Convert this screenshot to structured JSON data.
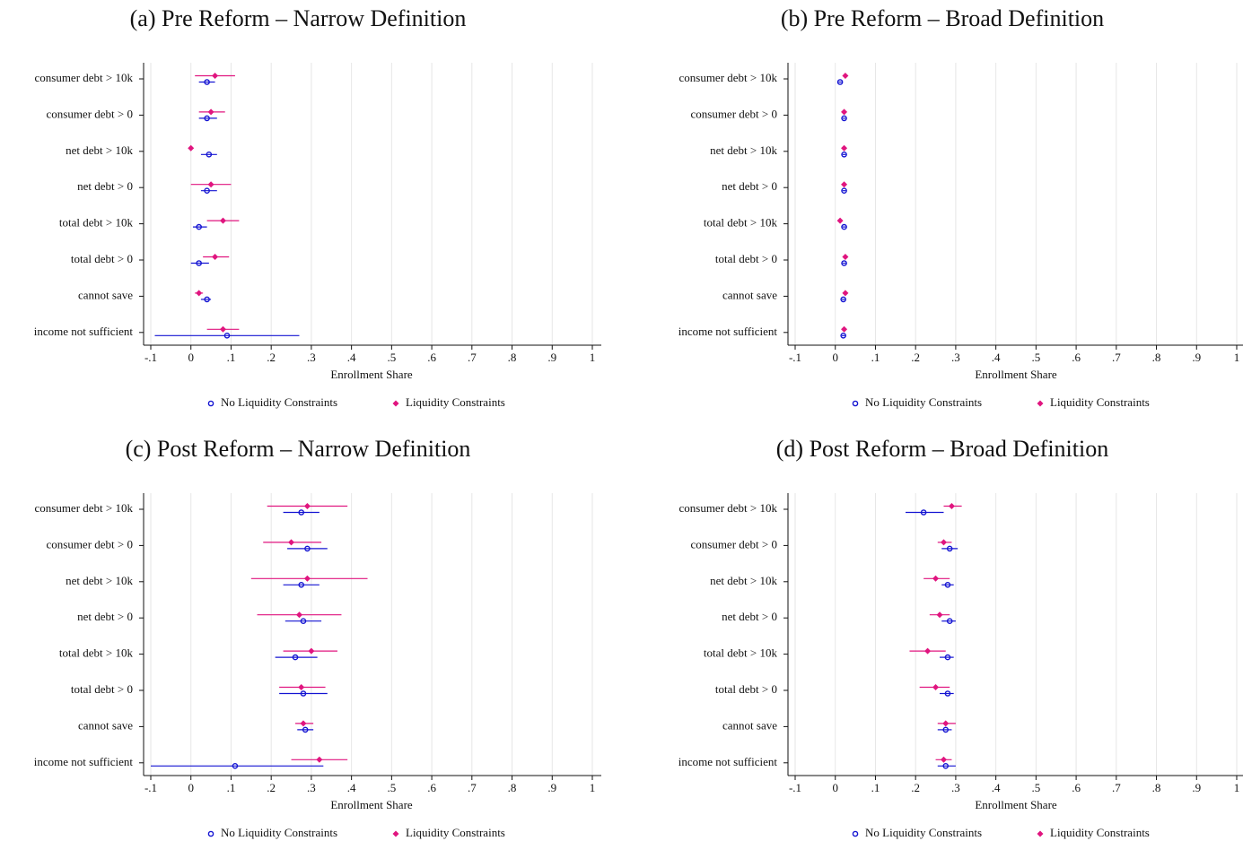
{
  "chart_data": [
    {
      "type": "dot",
      "title": "(a) Pre Reform – Narrow Definition",
      "xlabel": "Enrollment Share",
      "categories": [
        "consumer debt > 10k",
        "consumer debt > 0",
        "net debt > 10k",
        "net debt > 0",
        "total debt > 10k",
        "total debt > 0",
        "cannot save",
        "income not sufficient"
      ],
      "xlim": [
        -0.1,
        1
      ],
      "xticks": [
        {
          "value": -0.1,
          "label": "-.1"
        },
        0,
        {
          "value": 0.1,
          "label": ".1"
        },
        {
          "value": 0.2,
          "label": ".2"
        },
        {
          "value": 0.3,
          "label": ".3"
        },
        {
          "value": 0.4,
          "label": ".4"
        },
        {
          "value": 0.5,
          "label": ".5"
        },
        {
          "value": 0.6,
          "label": ".6"
        },
        {
          "value": 0.7,
          "label": ".7"
        },
        {
          "value": 0.8,
          "label": ".8"
        },
        {
          "value": 0.9,
          "label": ".9"
        },
        1
      ],
      "grid": true,
      "series": [
        {
          "name": "No Liquidity Constraints",
          "color": "#1414d2",
          "marker": "circle",
          "values": [
            0.04,
            0.04,
            0.045,
            0.04,
            0.02,
            0.02,
            0.04,
            0.09
          ],
          "lower": [
            0.02,
            0.02,
            0.025,
            0.025,
            0.005,
            0,
            0.025,
            -0.09
          ],
          "upper": [
            0.06,
            0.065,
            0.065,
            0.065,
            0.04,
            0.045,
            0.05,
            0.27
          ]
        },
        {
          "name": "Liquidity Constraints",
          "color": "#e0157f",
          "marker": "diamond",
          "values": [
            0.06,
            0.05,
            0,
            0.05,
            0.08,
            0.06,
            0.02,
            0.08
          ],
          "lower": [
            0.01,
            0.02,
            -0.002,
            0,
            0.04,
            0.03,
            0.01,
            0.04
          ],
          "upper": [
            0.11,
            0.085,
            0.002,
            0.1,
            0.12,
            0.095,
            0.03,
            0.12
          ]
        }
      ]
    },
    {
      "type": "dot",
      "title": "(b) Pre Reform – Broad Definition",
      "xlabel": "Enrollment Share",
      "categories": [
        "consumer debt > 10k",
        "consumer debt > 0",
        "net debt > 10k",
        "net debt > 0",
        "total debt > 10k",
        "total debt > 0",
        "cannot save",
        "income not sufficient"
      ],
      "xlim": [
        -0.1,
        1
      ],
      "xticks": [
        {
          "value": -0.1,
          "label": "-.1"
        },
        0,
        {
          "value": 0.1,
          "label": ".1"
        },
        {
          "value": 0.2,
          "label": ".2"
        },
        {
          "value": 0.3,
          "label": ".3"
        },
        {
          "value": 0.4,
          "label": ".4"
        },
        {
          "value": 0.5,
          "label": ".5"
        },
        {
          "value": 0.6,
          "label": ".6"
        },
        {
          "value": 0.7,
          "label": ".7"
        },
        {
          "value": 0.8,
          "label": ".8"
        },
        {
          "value": 0.9,
          "label": ".9"
        },
        1
      ],
      "grid": true,
      "series": [
        {
          "name": "No Liquidity Constraints",
          "color": "#1414d2",
          "marker": "circle",
          "values": [
            0.012,
            0.022,
            0.022,
            0.022,
            0.022,
            0.022,
            0.02,
            0.02
          ],
          "lower": [
            0.008,
            0.018,
            0.018,
            0.018,
            0.018,
            0.018,
            0.016,
            0.016
          ],
          "upper": [
            0.016,
            0.026,
            0.026,
            0.026,
            0.026,
            0.026,
            0.024,
            0.024
          ]
        },
        {
          "name": "Liquidity Constraints",
          "color": "#e0157f",
          "marker": "diamond",
          "values": [
            0.025,
            0.022,
            0.022,
            0.022,
            0.012,
            0.025,
            0.025,
            0.022
          ],
          "lower": [
            0.021,
            0.018,
            0.018,
            0.018,
            0.006,
            0.019,
            0.021,
            0.018
          ],
          "upper": [
            0.029,
            0.026,
            0.026,
            0.026,
            0.018,
            0.031,
            0.029,
            0.026
          ]
        }
      ]
    },
    {
      "type": "dot",
      "title": "(c) Post Reform – Narrow Definition",
      "xlabel": "Enrollment Share",
      "categories": [
        "consumer debt > 10k",
        "consumer debt > 0",
        "net debt > 10k",
        "net debt > 0",
        "total debt > 10k",
        "total debt > 0",
        "cannot save",
        "income not sufficient"
      ],
      "xlim": [
        -0.1,
        1
      ],
      "xticks": [
        {
          "value": -0.1,
          "label": "-.1"
        },
        0,
        {
          "value": 0.1,
          "label": ".1"
        },
        {
          "value": 0.2,
          "label": ".2"
        },
        {
          "value": 0.3,
          "label": ".3"
        },
        {
          "value": 0.4,
          "label": ".4"
        },
        {
          "value": 0.5,
          "label": ".5"
        },
        {
          "value": 0.6,
          "label": ".6"
        },
        {
          "value": 0.7,
          "label": ".7"
        },
        {
          "value": 0.8,
          "label": ".8"
        },
        {
          "value": 0.9,
          "label": ".9"
        },
        1
      ],
      "grid": true,
      "series": [
        {
          "name": "No Liquidity Constraints",
          "color": "#1414d2",
          "marker": "circle",
          "values": [
            0.275,
            0.29,
            0.275,
            0.28,
            0.26,
            0.28,
            0.285,
            0.11
          ],
          "lower": [
            0.23,
            0.24,
            0.23,
            0.235,
            0.21,
            0.22,
            0.265,
            -0.1
          ],
          "upper": [
            0.32,
            0.34,
            0.32,
            0.325,
            0.315,
            0.34,
            0.305,
            0.33
          ]
        },
        {
          "name": "Liquidity Constraints",
          "color": "#e0157f",
          "marker": "diamond",
          "values": [
            0.29,
            0.25,
            0.29,
            0.27,
            0.3,
            0.275,
            0.28,
            0.32
          ],
          "lower": [
            0.19,
            0.18,
            0.15,
            0.165,
            0.23,
            0.22,
            0.26,
            0.25
          ],
          "upper": [
            0.39,
            0.325,
            0.44,
            0.375,
            0.365,
            0.335,
            0.305,
            0.39
          ]
        }
      ]
    },
    {
      "type": "dot",
      "title": "(d) Post Reform – Broad Definition",
      "xlabel": "Enrollment Share",
      "categories": [
        "consumer debt > 10k",
        "consumer debt > 0",
        "net debt > 10k",
        "net debt > 0",
        "total debt > 10k",
        "total debt > 0",
        "cannot save",
        "income not sufficient"
      ],
      "xlim": [
        -0.1,
        1
      ],
      "xticks": [
        {
          "value": -0.1,
          "label": "-.1"
        },
        0,
        {
          "value": 0.1,
          "label": ".1"
        },
        {
          "value": 0.2,
          "label": ".2"
        },
        {
          "value": 0.3,
          "label": ".3"
        },
        {
          "value": 0.4,
          "label": ".4"
        },
        {
          "value": 0.5,
          "label": ".5"
        },
        {
          "value": 0.6,
          "label": ".6"
        },
        {
          "value": 0.7,
          "label": ".7"
        },
        {
          "value": 0.8,
          "label": ".8"
        },
        {
          "value": 0.9,
          "label": ".9"
        },
        1
      ],
      "grid": true,
      "series": [
        {
          "name": "No Liquidity Constraints",
          "color": "#1414d2",
          "marker": "circle",
          "values": [
            0.22,
            0.285,
            0.28,
            0.285,
            0.28,
            0.28,
            0.275,
            0.275
          ],
          "lower": [
            0.175,
            0.265,
            0.265,
            0.265,
            0.26,
            0.26,
            0.255,
            0.255
          ],
          "upper": [
            0.27,
            0.305,
            0.295,
            0.3,
            0.295,
            0.295,
            0.29,
            0.3
          ]
        },
        {
          "name": "Liquidity Constraints",
          "color": "#e0157f",
          "marker": "diamond",
          "values": [
            0.29,
            0.27,
            0.25,
            0.26,
            0.23,
            0.25,
            0.275,
            0.27
          ],
          "lower": [
            0.27,
            0.255,
            0.22,
            0.235,
            0.185,
            0.21,
            0.255,
            0.25
          ],
          "upper": [
            0.315,
            0.29,
            0.285,
            0.285,
            0.275,
            0.285,
            0.3,
            0.29
          ]
        }
      ]
    }
  ]
}
